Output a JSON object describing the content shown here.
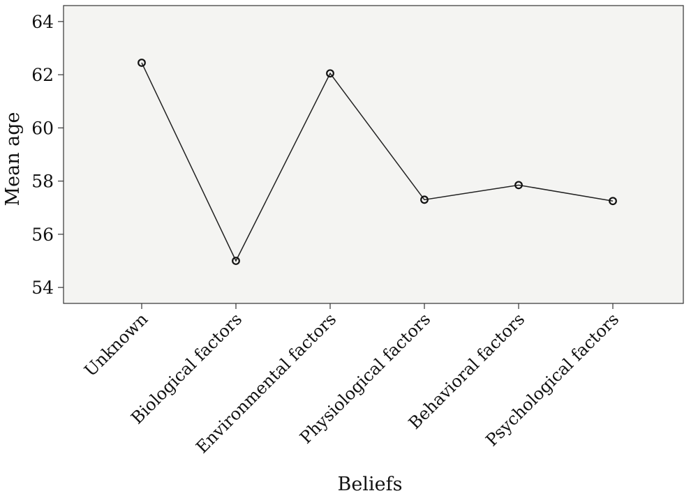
{
  "chart_data": {
    "type": "line",
    "title": "",
    "xlabel": "Beliefs",
    "ylabel": "Mean age",
    "categories": [
      "Unknown",
      "Biological factors",
      "Environmental factors",
      "Physiological factors",
      "Behavioral factors",
      "Psychological factors"
    ],
    "series": [
      {
        "values": [
          62.45,
          55.0,
          62.05,
          57.3,
          57.85,
          57.25
        ]
      }
    ],
    "ylim": [
      53.4,
      64.6
    ],
    "yticks": [
      54,
      56,
      58,
      60,
      62,
      64
    ],
    "grid": false,
    "legend": "none",
    "colors": {
      "plot_background": "#f4f4f2",
      "line": "#222222",
      "marker": "#111111"
    }
  }
}
